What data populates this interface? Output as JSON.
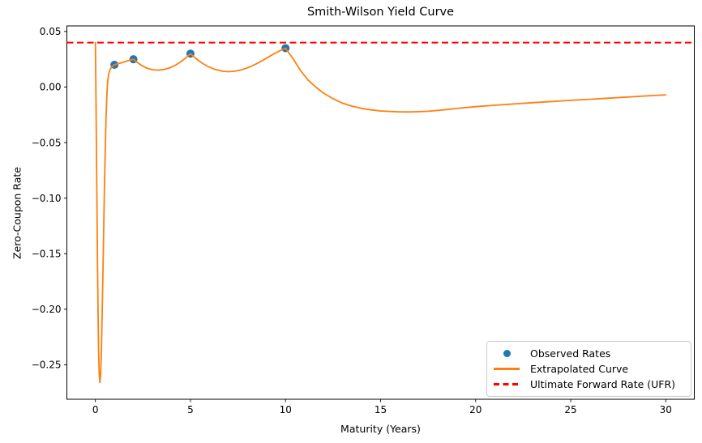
{
  "style": {
    "background": "#ffffff",
    "spine_color": "#000000",
    "text_color": "#000000",
    "legend_border": "#cccccc"
  },
  "chart_data": {
    "type": "line",
    "title": "Smith-Wilson Yield Curve",
    "xlabel": "Maturity (Years)",
    "ylabel": "Zero-Coupon Rate",
    "xlim": [
      -1.5,
      31.5
    ],
    "ylim": [
      -0.281,
      0.055
    ],
    "x_ticks": [
      0,
      5,
      10,
      15,
      20,
      25,
      30
    ],
    "y_ticks": [
      0.05,
      0.0,
      -0.05,
      -0.1,
      -0.15,
      -0.2,
      -0.25
    ],
    "grid": false,
    "legend_position": "lower right",
    "series": [
      {
        "name": "Observed Rates",
        "type": "scatter",
        "color": "#1f77b4",
        "points": [
          [
            1,
            0.02
          ],
          [
            2,
            0.025
          ],
          [
            5,
            0.03
          ],
          [
            10,
            0.035
          ]
        ]
      },
      {
        "name": "Extrapolated Curve",
        "type": "line",
        "color": "#ff7f0e",
        "points": [
          [
            0,
            0.04
          ],
          [
            0.02,
            0.005
          ],
          [
            0.05,
            -0.05
          ],
          [
            0.08,
            -0.105
          ],
          [
            0.11,
            -0.16
          ],
          [
            0.14,
            -0.205
          ],
          [
            0.17,
            -0.24
          ],
          [
            0.2,
            -0.258
          ],
          [
            0.24,
            -0.266
          ],
          [
            0.28,
            -0.258
          ],
          [
            0.32,
            -0.235
          ],
          [
            0.36,
            -0.2
          ],
          [
            0.4,
            -0.163
          ],
          [
            0.44,
            -0.125
          ],
          [
            0.48,
            -0.088
          ],
          [
            0.52,
            -0.055
          ],
          [
            0.56,
            -0.028
          ],
          [
            0.6,
            -0.008
          ],
          [
            0.64,
            0.004
          ],
          [
            0.7,
            0.012
          ],
          [
            0.78,
            0.016
          ],
          [
            0.88,
            0.0185
          ],
          [
            1.0,
            0.02
          ],
          [
            1.15,
            0.0208
          ],
          [
            1.35,
            0.0218
          ],
          [
            1.6,
            0.023
          ],
          [
            1.8,
            0.0242
          ],
          [
            2.0,
            0.025
          ],
          [
            2.2,
            0.0222
          ],
          [
            2.45,
            0.0192
          ],
          [
            2.7,
            0.017
          ],
          [
            3.0,
            0.0156
          ],
          [
            3.3,
            0.0152
          ],
          [
            3.6,
            0.0158
          ],
          [
            3.9,
            0.0172
          ],
          [
            4.2,
            0.0196
          ],
          [
            4.5,
            0.0228
          ],
          [
            4.75,
            0.0262
          ],
          [
            5.0,
            0.03
          ],
          [
            5.25,
            0.0262
          ],
          [
            5.55,
            0.0222
          ],
          [
            5.9,
            0.0186
          ],
          [
            6.3,
            0.0158
          ],
          [
            6.7,
            0.0142
          ],
          [
            7.0,
            0.0138
          ],
          [
            7.3,
            0.0142
          ],
          [
            7.7,
            0.0156
          ],
          [
            8.1,
            0.018
          ],
          [
            8.5,
            0.0212
          ],
          [
            8.9,
            0.025
          ],
          [
            9.3,
            0.029
          ],
          [
            9.65,
            0.0322
          ],
          [
            10.0,
            0.035
          ],
          [
            10.2,
            0.0302
          ],
          [
            10.4,
            0.0255
          ],
          [
            10.77,
            0.0153
          ],
          [
            11.2,
            0.006
          ],
          [
            11.62,
            -0.0004
          ],
          [
            12.0,
            -0.0055
          ],
          [
            12.47,
            -0.0102
          ],
          [
            13.0,
            -0.0145
          ],
          [
            13.5,
            -0.0172
          ],
          [
            14.0,
            -0.0192
          ],
          [
            14.5,
            -0.0206
          ],
          [
            15.0,
            -0.0215
          ],
          [
            15.5,
            -0.022
          ],
          [
            16.0,
            -0.0223
          ],
          [
            16.5,
            -0.0224
          ],
          [
            17.0,
            -0.0222
          ],
          [
            17.5,
            -0.0218
          ],
          [
            18.0,
            -0.0211
          ],
          [
            18.5,
            -0.0202
          ],
          [
            19.0,
            -0.0193
          ],
          [
            19.5,
            -0.0185
          ],
          [
            20.0,
            -0.0177
          ],
          [
            21.0,
            -0.0164
          ],
          [
            22.0,
            -0.0152
          ],
          [
            23.0,
            -0.0141
          ],
          [
            24.0,
            -0.013
          ],
          [
            25.0,
            -0.012
          ],
          [
            26.0,
            -0.011
          ],
          [
            27.0,
            -0.01
          ],
          [
            28.0,
            -0.009
          ],
          [
            29.0,
            -0.008
          ],
          [
            30.0,
            -0.007
          ]
        ]
      },
      {
        "name": "Ultimate Forward Rate (UFR)",
        "type": "hline",
        "color": "#ff0000",
        "linestyle": "dashed",
        "y": 0.04
      }
    ]
  }
}
